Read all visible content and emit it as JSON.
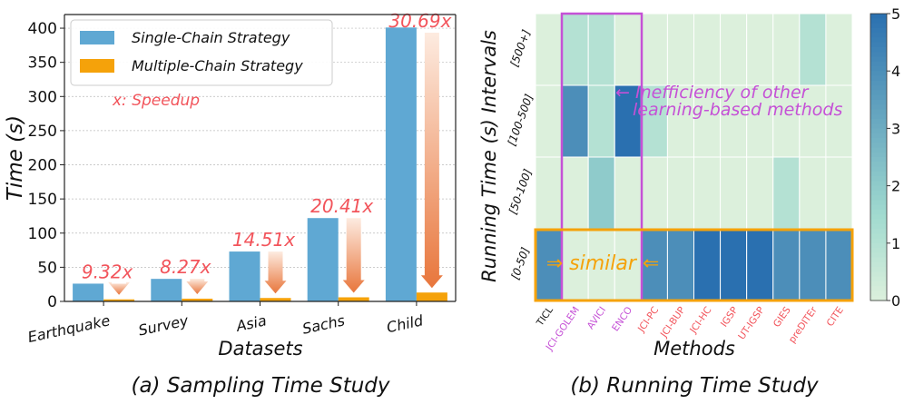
{
  "colors": {
    "single": "#5fa8d3",
    "multiple": "#f5a20a",
    "speedup": "#f2545b",
    "purple": "#c551d6",
    "orange": "#f5a20a",
    "arrow_top": "#fdebe0",
    "arrow_bottom": "#e8763c",
    "cmap_low": "#dcf0dc",
    "cmap_mid": "#a0dacf",
    "cmap_high": "#2a70b0"
  },
  "chart_data": [
    {
      "type": "bar",
      "title": "(a) Sampling Time Study",
      "xlabel": "Datasets",
      "ylabel": "Time (s)",
      "ylim": [
        0,
        420
      ],
      "yticks": [
        0,
        50,
        100,
        150,
        200,
        250,
        300,
        350,
        400
      ],
      "grid": true,
      "legend_position": "top-left",
      "categories": [
        "Earthquake",
        "Survey",
        "Asia",
        "Sachs",
        "Child"
      ],
      "series": [
        {
          "name": "Single-Chain Strategy",
          "values": [
            26,
            33,
            73,
            122,
            401
          ]
        },
        {
          "name": "Multiple-Chain Strategy",
          "values": [
            3,
            4,
            5,
            6,
            13
          ]
        }
      ],
      "speedups": [
        "9.32x",
        "8.27x",
        "14.51x",
        "20.41x",
        "30.69x"
      ],
      "annotation": "x: Speedup"
    },
    {
      "type": "heatmap",
      "title": "(b) Running Time Study",
      "xlabel": "Methods",
      "ylabel": "Running Time (s) Intervals",
      "rows": [
        "[500+]",
        "[100-500]",
        "[50-100]",
        "[0-50]"
      ],
      "columns": [
        "TICL",
        "JCI-GOLEM",
        "AVICI",
        "ENCO",
        "JCI-PC",
        "JCI-BUP",
        "JCI-HC",
        "IGSP",
        "UT-IGSP",
        "GIES",
        "preDITEr",
        "CITE"
      ],
      "column_groups": [
        "self",
        "learning",
        "learning",
        "learning",
        "classic",
        "classic",
        "classic",
        "classic",
        "classic",
        "classic",
        "classic",
        "classic"
      ],
      "values": [
        [
          0,
          1,
          1,
          0,
          0,
          0,
          0,
          0,
          0,
          0,
          1,
          0
        ],
        [
          0,
          4,
          1,
          5,
          1,
          0,
          0,
          0,
          0,
          0,
          0,
          0
        ],
        [
          0,
          0,
          2,
          0,
          0,
          0,
          0,
          0,
          0,
          1,
          0,
          0
        ],
        [
          4,
          0,
          0,
          0,
          4,
          4,
          5,
          5,
          5,
          4,
          4,
          4
        ]
      ],
      "colorbar": {
        "min": 0,
        "max": 5,
        "ticks": [
          0,
          1,
          2,
          3,
          4,
          5
        ]
      },
      "annotations": {
        "inefficiency_line1": "← Inefficiency of other",
        "inefficiency_line2": "learning-based methods",
        "similar": "⇒ similar ⇐"
      }
    }
  ]
}
